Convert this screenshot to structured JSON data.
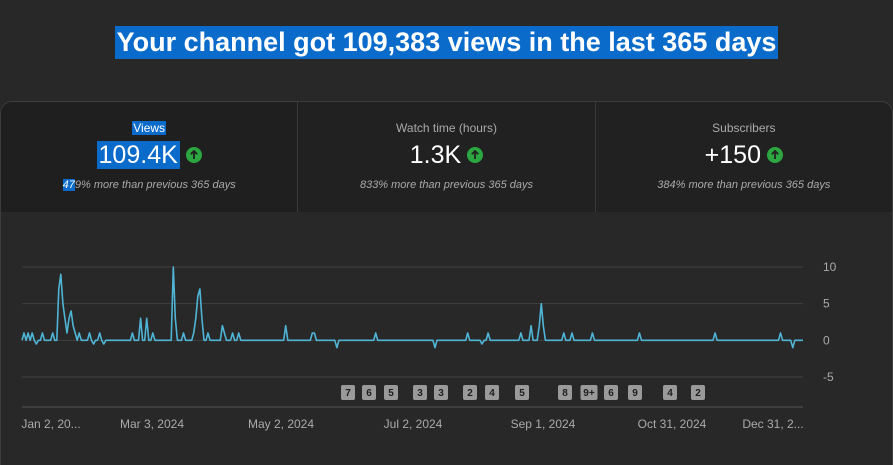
{
  "headline": "Your channel got 109,383 views in the last 365 days",
  "metrics": [
    {
      "label": "Views",
      "value": "109.4K",
      "change_hl": "47",
      "change_rest": "9% more than previous 365 days",
      "trend": "up",
      "selected": true
    },
    {
      "label": "Watch time (hours)",
      "value": "1.3K",
      "change": "833% more than previous 365 days",
      "trend": "up",
      "selected": false
    },
    {
      "label": "Subscribers",
      "value": "+150",
      "change": "384% more than previous 365 days",
      "trend": "up",
      "selected": false
    }
  ],
  "colors": {
    "accent": "#0b6bcb",
    "line": "#4fb5d6",
    "up": "#2ba640"
  },
  "chart_data": {
    "type": "line",
    "y_ticks": [
      "10",
      "5",
      "0",
      "-5"
    ],
    "ylim": [
      -5,
      10
    ],
    "x_labels": [
      "Jan 2, 20...",
      "Mar 3, 2024",
      "May 2, 2024",
      "Jul 2, 2024",
      "Sep 1, 2024",
      "Oct 31, 2024",
      "Dec 31, 2..."
    ],
    "markers": [
      "7",
      "6",
      "5",
      "3",
      "3",
      "2",
      "4",
      "5",
      "8",
      "9+",
      "6",
      "9",
      "4",
      "2"
    ],
    "series": [
      {
        "values": [
          0,
          1,
          0,
          1,
          0,
          1,
          0,
          -0.5,
          0,
          0,
          1,
          0,
          0,
          0,
          0,
          1,
          0,
          0,
          7,
          9,
          5,
          3,
          1,
          3,
          4,
          2,
          1,
          0,
          1,
          0,
          0,
          0,
          0,
          1,
          0,
          -0.5,
          0,
          0,
          1,
          0,
          -0.5,
          0,
          0,
          0,
          0,
          0,
          0,
          0,
          0,
          0,
          0,
          0,
          0,
          0,
          1,
          0,
          0,
          0,
          3,
          0,
          0,
          3,
          0,
          0,
          1,
          0,
          0,
          0,
          0,
          0,
          0,
          0,
          0,
          0,
          10,
          3,
          0,
          0,
          0,
          1,
          0,
          0,
          0,
          0,
          1,
          3,
          6,
          7,
          3,
          0,
          0,
          1,
          0,
          0,
          0,
          0,
          0,
          0,
          2,
          1,
          0,
          0,
          0,
          1,
          0,
          0,
          1,
          0,
          0,
          0,
          0,
          0,
          0,
          0,
          0,
          0,
          0,
          0,
          0,
          0,
          0,
          0,
          0,
          0,
          0,
          0,
          0,
          0,
          0,
          2,
          0,
          0,
          0,
          0,
          0,
          0,
          0,
          0,
          0,
          0,
          0,
          0,
          1,
          1,
          0,
          0,
          0,
          0,
          0,
          0,
          0,
          0,
          0,
          0,
          -1,
          0,
          0,
          0,
          0,
          0,
          0,
          0,
          0,
          0,
          0,
          0,
          0,
          0,
          0,
          0,
          0,
          0,
          0,
          1,
          0,
          0,
          0,
          0,
          0,
          0,
          0,
          0,
          0,
          0,
          0,
          0,
          0,
          0,
          0,
          0,
          0,
          0,
          0,
          0,
          0,
          0,
          0,
          0,
          0,
          0,
          0,
          0,
          -1,
          0,
          0,
          0,
          0,
          0,
          0,
          0,
          0,
          0,
          0,
          0,
          0,
          0,
          0,
          0,
          1,
          0,
          0,
          0,
          0,
          0,
          0,
          -0.5,
          0,
          0,
          1,
          0,
          0,
          0,
          0,
          0,
          0,
          0,
          0,
          0,
          0,
          0,
          0,
          0,
          0,
          0,
          1,
          0,
          0,
          0,
          0,
          2,
          0,
          0,
          0,
          2,
          5,
          2,
          0,
          0,
          0,
          0,
          0,
          0,
          0,
          0,
          0,
          1,
          0,
          0,
          0,
          1,
          0,
          0,
          0,
          0,
          0,
          0,
          0,
          0,
          0,
          1,
          0,
          0,
          0,
          0,
          0,
          0,
          0,
          0,
          0,
          0,
          0,
          0,
          0,
          0,
          0,
          0,
          0,
          0,
          0,
          0,
          0,
          0,
          1,
          0,
          0,
          0,
          0,
          0,
          0,
          0,
          0,
          0,
          0,
          0,
          0,
          0,
          0,
          0,
          0,
          0,
          0,
          0,
          0,
          0,
          0,
          0,
          0,
          0,
          0,
          0,
          0,
          0,
          0,
          0,
          0,
          0,
          0,
          0,
          0,
          1,
          0,
          0,
          0,
          0,
          0,
          0,
          0,
          0,
          0,
          0,
          0,
          0,
          0,
          0,
          0,
          0,
          0,
          0,
          0,
          0,
          0,
          0,
          0,
          0,
          0,
          0,
          0,
          0,
          0,
          0,
          0,
          1,
          0,
          0,
          0,
          0,
          0,
          -1,
          0,
          0,
          0,
          0,
          0
        ]
      }
    ]
  }
}
